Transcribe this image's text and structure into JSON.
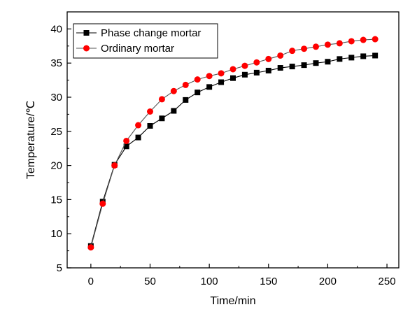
{
  "chart_data": {
    "type": "line",
    "title": "",
    "xlabel": "Time/min",
    "ylabel": "Temperature/℃",
    "xlim": [
      -20,
      260
    ],
    "ylim": [
      5,
      42.5
    ],
    "xticks": [
      0,
      50,
      100,
      150,
      200,
      250
    ],
    "yticks": [
      5,
      10,
      15,
      20,
      25,
      30,
      35,
      40
    ],
    "grid": false,
    "legend_position": "top-left",
    "x": [
      0,
      10,
      20,
      30,
      40,
      50,
      60,
      70,
      80,
      90,
      100,
      110,
      120,
      130,
      140,
      150,
      160,
      170,
      180,
      190,
      200,
      210,
      220,
      230,
      240
    ],
    "series": [
      {
        "name": "Phase change mortar",
        "marker": "square",
        "color": "#000000",
        "values": [
          8.2,
          14.7,
          20.1,
          22.8,
          24.1,
          25.8,
          26.9,
          28.0,
          29.6,
          30.7,
          31.5,
          32.2,
          32.8,
          33.3,
          33.6,
          33.9,
          34.3,
          34.5,
          34.7,
          35.0,
          35.2,
          35.6,
          35.8,
          36.0,
          36.1
        ]
      },
      {
        "name": "Ordinary mortar",
        "marker": "circle",
        "color": "#ff0000",
        "line_color": "#555555",
        "values": [
          8.0,
          14.4,
          20.0,
          23.6,
          25.9,
          27.9,
          29.7,
          30.9,
          31.8,
          32.6,
          33.1,
          33.5,
          34.1,
          34.6,
          35.1,
          35.6,
          36.1,
          36.8,
          37.1,
          37.4,
          37.7,
          37.9,
          38.2,
          38.4,
          38.5
        ]
      }
    ]
  }
}
